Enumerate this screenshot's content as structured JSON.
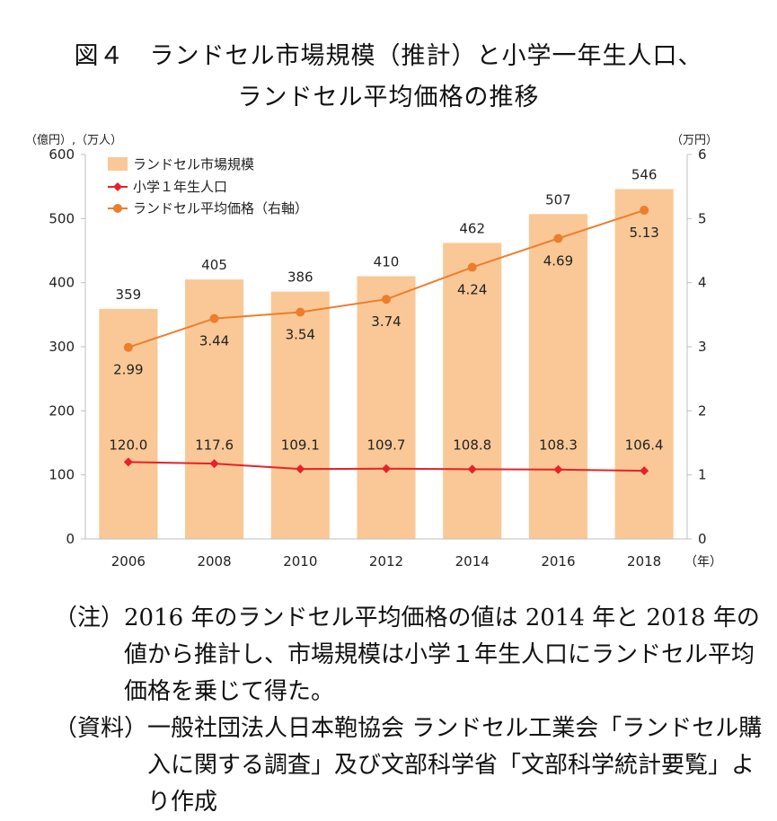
{
  "title_line1": "図４　ランドセル市場規模（推計）と小学一年生人口、",
  "title_line2": "ランドセル平均価格の推移",
  "notes": [
    {
      "label": "（注）",
      "text": "2016 年のランドセル平均価格の値は 2014 年と 2018 年の値から推計し、市場規模は小学１年生人口にランドセル平均価格を乗じて得た。"
    },
    {
      "label": "（資料）",
      "text": "一般社団法人日本鞄協会 ランドセル工業会「ランドセル購入に関する調査」及び文部科学省「文部科学統計要覧」より作成"
    }
  ],
  "chart_data": {
    "type": "bar",
    "categories": [
      "2006",
      "2008",
      "2010",
      "2012",
      "2014",
      "2016",
      "2018"
    ],
    "xlabel": "（年）",
    "ylabel_left": "（億円）,（万人）",
    "ylabel_right": "（万円）",
    "ylim_left": [
      0,
      600
    ],
    "ylim_right": [
      0,
      6
    ],
    "yticks_left": [
      "0",
      "100",
      "200",
      "300",
      "400",
      "500",
      "600"
    ],
    "yticks_right": [
      "0",
      "1",
      "2",
      "3",
      "4",
      "5",
      "6"
    ],
    "grid": false,
    "legend_position": "top-left",
    "series": [
      {
        "name": "ランドセル市場規模",
        "kind": "bar",
        "axis": "left",
        "color": "#f9c896",
        "values": [
          359,
          405,
          386,
          410,
          462,
          507,
          546
        ],
        "labels": [
          "359",
          "405",
          "386",
          "410",
          "462",
          "507",
          "546"
        ]
      },
      {
        "name": "小学１年生人口",
        "kind": "line",
        "axis": "left",
        "color": "#e8202a",
        "marker": "diamond",
        "values": [
          120.0,
          117.6,
          109.1,
          109.7,
          108.8,
          108.3,
          106.4
        ],
        "labels": [
          "120.0",
          "117.6",
          "109.1",
          "109.7",
          "108.8",
          "108.3",
          "106.4"
        ]
      },
      {
        "name": "ランドセル平均価格（右軸）",
        "kind": "line",
        "axis": "right",
        "color": "#ee7d2c",
        "marker": "circle",
        "values": [
          2.99,
          3.44,
          3.54,
          3.74,
          4.24,
          4.69,
          5.13
        ],
        "labels": [
          "2.99",
          "3.44",
          "3.54",
          "3.74",
          "4.24",
          "4.69",
          "5.13"
        ]
      }
    ]
  }
}
